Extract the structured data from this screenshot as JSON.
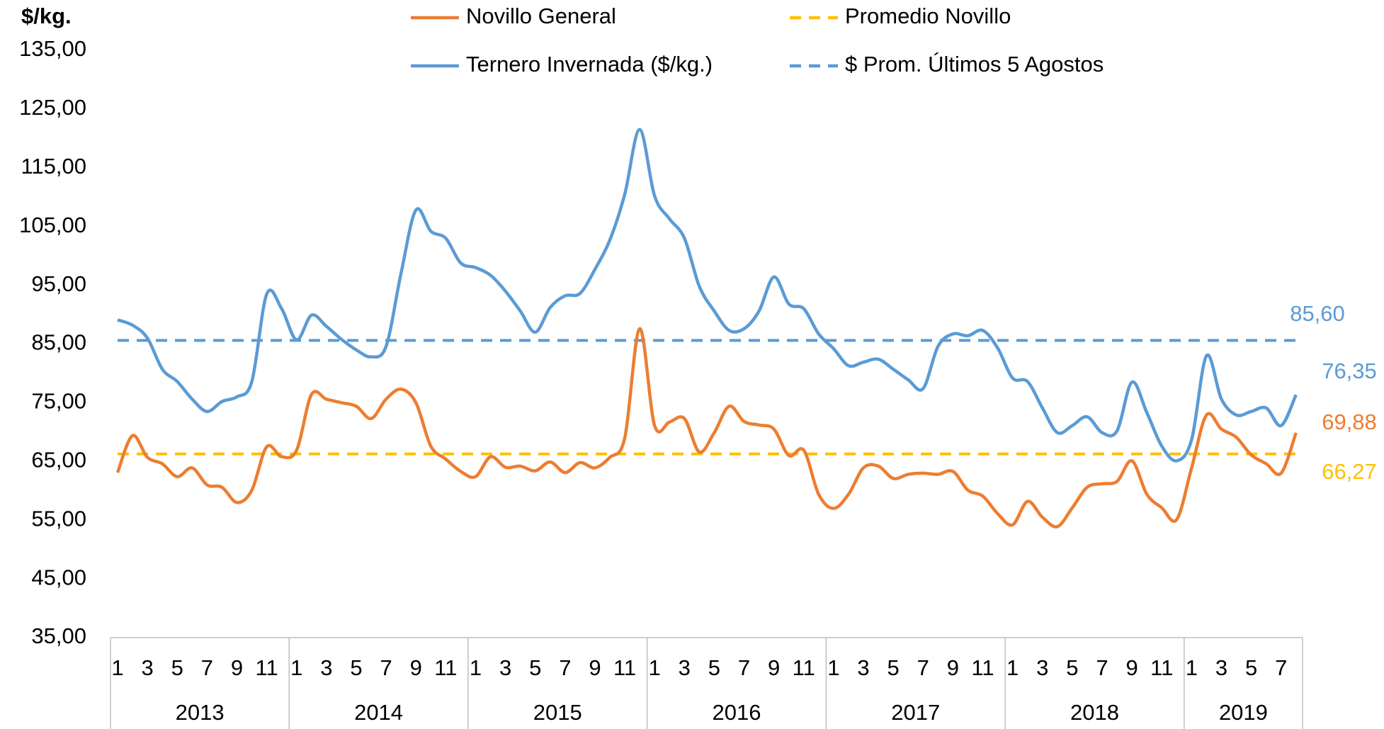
{
  "chart_data": {
    "type": "line",
    "y_unit": "$/kg.",
    "categories": [
      "1",
      null,
      "3",
      null,
      "5",
      null,
      "7",
      null,
      "9",
      null,
      "11",
      null,
      "1",
      null,
      "3",
      null,
      "5",
      null,
      "7",
      null,
      "9",
      null,
      "11",
      null,
      "1",
      null,
      "3",
      null,
      "5",
      null,
      "7",
      null,
      "9",
      null,
      "11",
      null,
      "1",
      null,
      "3",
      null,
      "5",
      null,
      "7",
      null,
      "9",
      null,
      "11",
      null,
      "1",
      null,
      "3",
      null,
      "5",
      null,
      "7",
      null,
      "9",
      null,
      "11",
      null,
      "1",
      null,
      "3",
      null,
      "5",
      null,
      "7",
      null,
      "9",
      null,
      "11",
      null,
      "1",
      null,
      "3",
      null,
      "5",
      null,
      "7",
      null
    ],
    "years": [
      "2013",
      "2014",
      "2015",
      "2016",
      "2017",
      "2018",
      "2019"
    ],
    "series": [
      {
        "name": "Novillo General",
        "color": "#ed7d31",
        "end_label": "69,88",
        "values": [
          63.1,
          69.4,
          65.7,
          64.6,
          62.4,
          63.9,
          61,
          60.6,
          58,
          60.1,
          67.5,
          65.8,
          66.9,
          76.4,
          75.6,
          75,
          74.4,
          72.3,
          75.6,
          77.3,
          75,
          67.6,
          65.4,
          63.3,
          62.4,
          65.8,
          64,
          64.2,
          63.4,
          64.9,
          63.1,
          64.8,
          63.9,
          65.7,
          69,
          87.6,
          71.1,
          71.7,
          72.3,
          66.6,
          69.9,
          74.4,
          71.8,
          71.2,
          70.5,
          66,
          66.9,
          59.4,
          57,
          59.4,
          63.9,
          64.2,
          62.1,
          62.8,
          63,
          62.8,
          63.3,
          60.1,
          59.1,
          56.1,
          54.2,
          58.2,
          55.5,
          53.9,
          57.1,
          60.6,
          61.2,
          61.6,
          65.1,
          59.4,
          57.1,
          55.1,
          63.9,
          72.9,
          70.5,
          69.1,
          66.1,
          64.6,
          63,
          69.88
        ]
      },
      {
        "name": "Ternero Invernada  ($/kg.)",
        "color": "#5b9bd5",
        "end_label": "76,35",
        "values": [
          89.1,
          88.2,
          86,
          80.7,
          78.6,
          75.6,
          73.5,
          75.2,
          76,
          78.6,
          93.5,
          91,
          85.7,
          89.9,
          88,
          85.8,
          84,
          82.8,
          84.6,
          97,
          107.8,
          104.2,
          103,
          98.8,
          98,
          96.7,
          94,
          90.6,
          87,
          91.2,
          93.2,
          93.6,
          97.7,
          102.7,
          110.5,
          121.5,
          110.2,
          106.3,
          103,
          94.8,
          90.6,
          87.3,
          87.6,
          90.6,
          96.4,
          91.8,
          91,
          86.7,
          84.2,
          81.3,
          81.9,
          82.4,
          80.7,
          78.9,
          77.4,
          84.6,
          86.7,
          86.4,
          87.3,
          84.3,
          79.2,
          78.6,
          74.1,
          69.9,
          71.1,
          72.6,
          69.9,
          70.2,
          78.5,
          73.3,
          67.6,
          65.1,
          68.7,
          83,
          75.6,
          72.9,
          73.5,
          74.1,
          71.1,
          76.35
        ]
      }
    ],
    "reference_lines": [
      {
        "name": "Promedio Novillo",
        "color": "#ffc000",
        "value": 66.27,
        "label": "66,27"
      },
      {
        "name": "$ Prom. Últimos 5 Agostos",
        "color": "#5b9bd5",
        "value": 85.6,
        "label": "85,60"
      }
    ],
    "ylim": [
      35,
      135
    ],
    "yticks": [
      {
        "value": 35,
        "label": "35,00"
      },
      {
        "value": 45,
        "label": "45,00"
      },
      {
        "value": 55,
        "label": "55,00"
      },
      {
        "value": 65,
        "label": "65,00"
      },
      {
        "value": 75,
        "label": "75,00"
      },
      {
        "value": 85,
        "label": "85,00"
      },
      {
        "value": 95,
        "label": "95,00"
      },
      {
        "value": 105,
        "label": "105,00"
      },
      {
        "value": 115,
        "label": "115,00"
      },
      {
        "value": 125,
        "label": "125,00"
      },
      {
        "value": 135,
        "label": "135,00"
      }
    ]
  }
}
